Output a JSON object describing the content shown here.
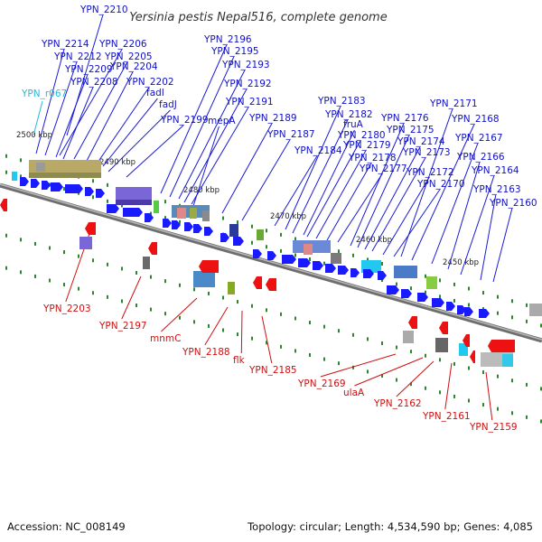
{
  "title": "Yersinia pestis Nepal516, complete genome",
  "footer": {
    "accession": "Accession: NC_008149",
    "topology": "Topology: circular; Length: 4,534,590 bp; Genes: 4,085"
  },
  "colors": {
    "forward_gene": "#1a1aff",
    "reverse_gene": "#ee1111",
    "label_forward": "#1010c8",
    "label_reverse": "#d01010",
    "rna_label": "#22bcd8",
    "backbone": "#8a8a8a"
  },
  "scale_ticks": [
    "2500 kbp",
    "2490 kbp",
    "2480 kbp",
    "2470 kbp",
    "2460 kbp",
    "2450 kbp"
  ],
  "forward_labels": [
    "YPN_2210",
    "YPN_2214",
    "YPN_2206",
    "YPN_2212",
    "YPN_2205",
    "YPN_2209",
    "YPN_2204",
    "YPN_2208",
    "YPN_2202",
    "fadI",
    "fadJ",
    "YPN_2199",
    "YPN_2196",
    "YPN_2195",
    "YPN_2193",
    "YPN_2192",
    "YPN_2191",
    "mepA",
    "YPN_2189",
    "YPN_2187",
    "YPN_2183",
    "YPN_2182",
    "fruA",
    "YPN_2180",
    "YPN_2184",
    "YPN_2179",
    "YPN_2178",
    "YPN_2177",
    "YPN_2176",
    "YPN_2175",
    "YPN_2174",
    "YPN_2173",
    "YPN_2172",
    "YPN_2170",
    "YPN_2171",
    "YPN_2168",
    "YPN_2167",
    "YPN_2166",
    "YPN_2164",
    "YPN_2163",
    "YPN_2160"
  ],
  "rna_labels": [
    "YPN_r067"
  ],
  "reverse_labels": [
    "YPN_2203",
    "YPN_2197",
    "mnmC",
    "YPN_2188",
    "flk",
    "YPN_2185",
    "YPN_2169",
    "ulaA",
    "YPN_2162",
    "YPN_2161",
    "YPN_2159"
  ]
}
